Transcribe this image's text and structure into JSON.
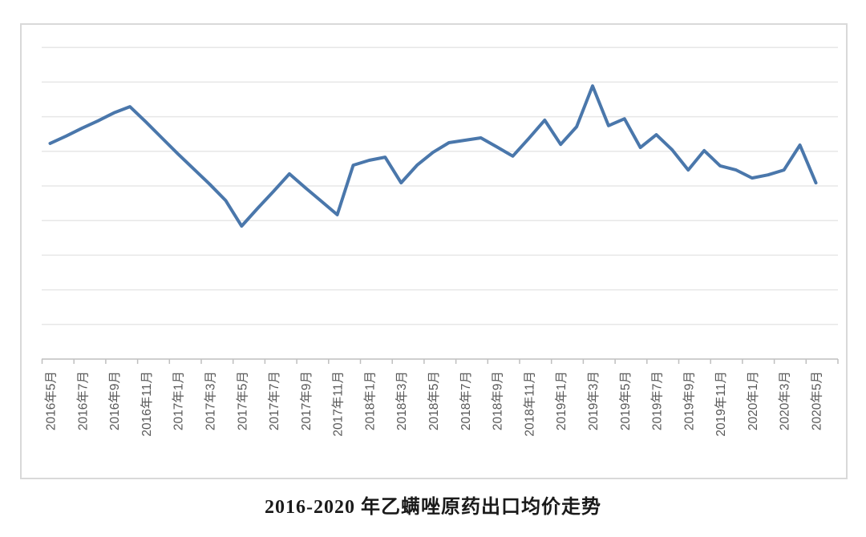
{
  "title": "2016-2020 年乙螨唑原药出口均价走势",
  "chart_data": {
    "type": "line",
    "title": "2016-2020 年乙螨唑原药出口均价走势",
    "xlabel": "",
    "ylabel": "",
    "legend": "none",
    "grid": true,
    "x_tick_label_interval_months": 2,
    "y_axis_tick_labels_visible": false,
    "y_unit": "gridline-intervals-above-x-axis (axis unlabeled)",
    "ylim": [
      0,
      9.65
    ],
    "gridline_values": [
      1,
      2,
      3,
      4,
      5,
      6,
      7,
      8,
      9
    ],
    "x": [
      "2016年5月",
      "2016年6月",
      "2016年7月",
      "2016年8月",
      "2016年9月",
      "2016年10月",
      "2016年11月",
      "2016年12月",
      "2017年1月",
      "2017年2月",
      "2017年3月",
      "2017年4月",
      "2017年5月",
      "2017年6月",
      "2017年7月",
      "2017年8月",
      "2017年9月",
      "2017年10月",
      "2017年11月",
      "2017年12月",
      "2018年1月",
      "2018年2月",
      "2018年3月",
      "2018年4月",
      "2018年5月",
      "2018年6月",
      "2018年7月",
      "2018年8月",
      "2018年9月",
      "2018年10月",
      "2018年11月",
      "2018年12月",
      "2019年1月",
      "2019年2月",
      "2019年3月",
      "2019年4月",
      "2019年5月",
      "2019年6月",
      "2019年7月",
      "2019年8月",
      "2019年9月",
      "2019年10月",
      "2019年11月",
      "2019年12月",
      "2020年1月",
      "2020年2月",
      "2020年3月",
      "2020年4月",
      "2020年5月"
    ],
    "x_tick_labels_shown": [
      "2016年5月",
      "2016年7月",
      "2016年9月",
      "2016年11月",
      "2017年1月",
      "2017年3月",
      "2017年5月",
      "2017年7月",
      "2017年9月",
      "2017年11月",
      "2018年1月",
      "2018年3月",
      "2018年5月",
      "2018年7月",
      "2018年9月",
      "2018年11月",
      "2019年1月",
      "2019年3月",
      "2019年5月",
      "2019年7月",
      "2019年9月",
      "2019年11月",
      "2020年1月",
      "2020年3月",
      "2020年5月"
    ],
    "series": [
      {
        "name": "出口均价",
        "values": [
          6.23,
          6.44,
          6.67,
          6.88,
          7.11,
          7.29,
          6.85,
          6.39,
          5.93,
          5.49,
          5.05,
          4.58,
          3.84,
          4.35,
          4.84,
          5.35,
          4.95,
          4.56,
          4.17,
          5.6,
          5.74,
          5.83,
          5.09,
          5.6,
          5.97,
          6.25,
          6.32,
          6.39,
          6.13,
          5.86,
          6.37,
          6.9,
          6.2,
          6.71,
          7.89,
          6.74,
          6.94,
          6.11,
          6.48,
          6.04,
          5.46,
          6.02,
          5.58,
          5.46,
          5.23,
          5.32,
          5.46,
          6.18,
          5.09
        ]
      }
    ]
  },
  "colors": {
    "line": "#4a77ab",
    "gridline": "#e7e7e7",
    "axis": "#bfbfbf",
    "tick": "#bfbfbf",
    "x_label_text": "#595959",
    "chart_border": "#d9d9d9",
    "title_text": "#1a1a1a",
    "background": "#ffffff"
  }
}
